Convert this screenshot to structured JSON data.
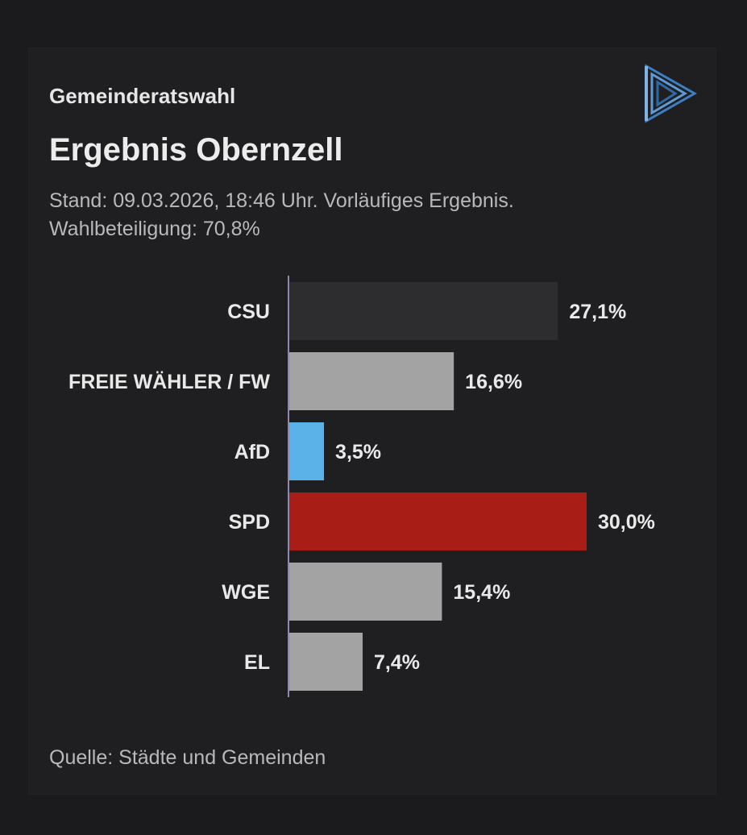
{
  "header": {
    "kicker": "Gemeinderatswahl",
    "title": "Ergebnis Obernzell",
    "subtitle_line1": "Stand: 09.03.2026, 18:46 Uhr. Vorläufiges Ergebnis.",
    "subtitle_line2": "Wahlbeteiligung: 70,8%"
  },
  "logo": {
    "icon": "play-triangle-logo-icon",
    "color": "#4a8fd1"
  },
  "footer": {
    "source": "Quelle: Städte und Gemeinden"
  },
  "chart_data": {
    "type": "bar",
    "orientation": "horizontal",
    "categories": [
      "CSU",
      "FREIE WÄHLER / FW",
      "AfD",
      "SPD",
      "WGE",
      "EL"
    ],
    "values": [
      27.1,
      16.6,
      3.5,
      30.0,
      15.4,
      7.4
    ],
    "value_labels": [
      "27,1%",
      "16,6%",
      "3,5%",
      "30,0%",
      "15,4%",
      "7,4%"
    ],
    "colors": [
      "#2d2d2f",
      "#a3a3a3",
      "#5bb2e8",
      "#a81e16",
      "#a3a3a3",
      "#a3a3a3"
    ],
    "xlim": [
      0,
      30
    ],
    "grid": false,
    "legend": "none"
  }
}
